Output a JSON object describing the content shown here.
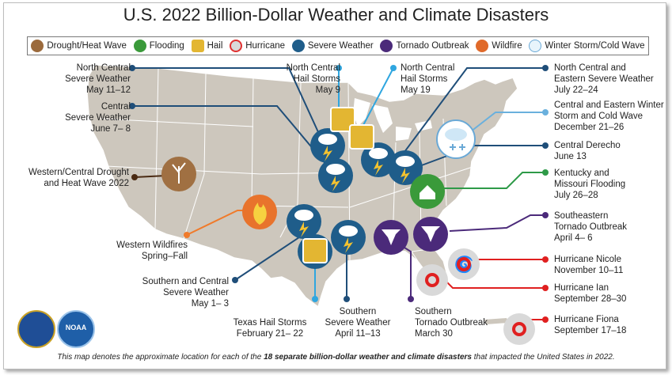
{
  "title": "U.S. 2022 Billion-Dollar Weather and Climate Disasters",
  "legend": [
    {
      "label": "Drought/Heat Wave",
      "icon": "drought-icon",
      "color": "#9b6a3c"
    },
    {
      "label": "Flooding",
      "icon": "flood-icon",
      "color": "#3a9a3a"
    },
    {
      "label": "Hail",
      "icon": "hail-icon",
      "color": "#e3b632"
    },
    {
      "label": "Hurricane",
      "icon": "hurricane-icon",
      "color": "#d9d9d9"
    },
    {
      "label": "Severe Weather",
      "icon": "severe-weather-icon",
      "color": "#1f5d8a"
    },
    {
      "label": "Tornado Outbreak",
      "icon": "tornado-icon",
      "color": "#4b2a7a"
    },
    {
      "label": "Wildfire",
      "icon": "wildfire-icon",
      "color": "#e06a2a"
    },
    {
      "label": "Winter Storm/Cold Wave",
      "icon": "winter-storm-icon",
      "color": "#e8f4fb"
    }
  ],
  "events": [
    {
      "line1": "North Central",
      "line2": "Severe Weather",
      "line3": "May 11–12"
    },
    {
      "line1": "Central",
      "line2": "Severe Weather",
      "line3": "June 7– 8"
    },
    {
      "line1": "Western/Central Drought",
      "line2": "and Heat Wave 2022"
    },
    {
      "line1": "Western Wildfires",
      "line2": "Spring–Fall"
    },
    {
      "line1": "Southern and Central",
      "line2": "Severe Weather",
      "line3": "May 1– 3"
    },
    {
      "line1": "Texas Hail Storms",
      "line2": "February 21– 22"
    },
    {
      "line1": "Southern",
      "line2": "Severe Weather",
      "line3": "April 11–13"
    },
    {
      "line1": "Southern",
      "line2": "Tornado Outbreak",
      "line3": "March 30"
    },
    {
      "line1": "North Central",
      "line2": "Hail Storms",
      "line3": "May 9"
    },
    {
      "line1": "North Central",
      "line2": "Hail Storms",
      "line3": "May 19"
    },
    {
      "line1": "North Central and",
      "line2": "Eastern Severe Weather",
      "line3": "July 22–24"
    },
    {
      "line1": "Central and Eastern Winter",
      "line2": "Storm and Cold Wave",
      "line3": "December 21–26"
    },
    {
      "line1": "Central Derecho",
      "line2": "June 13"
    },
    {
      "line1": "Kentucky and",
      "line2": "Missouri Flooding",
      "line3": "July 26–28"
    },
    {
      "line1": "Southeastern",
      "line2": "Tornado Outbreak",
      "line3": "April 4– 6"
    },
    {
      "line1": "Hurricane Nicole",
      "line2": "November 10–11"
    },
    {
      "line1": "Hurricane Ian",
      "line2": "September 28–30"
    },
    {
      "line1": "Hurricane Fiona",
      "line2": "September 17–18"
    }
  ],
  "footer": {
    "pre": "This map denotes the approximate location for each of the ",
    "bold": "18 separate billion-dollar weather and climate disasters",
    "post": " that impacted the United States in 2022."
  },
  "logos": {
    "noaa": "NOAA"
  }
}
